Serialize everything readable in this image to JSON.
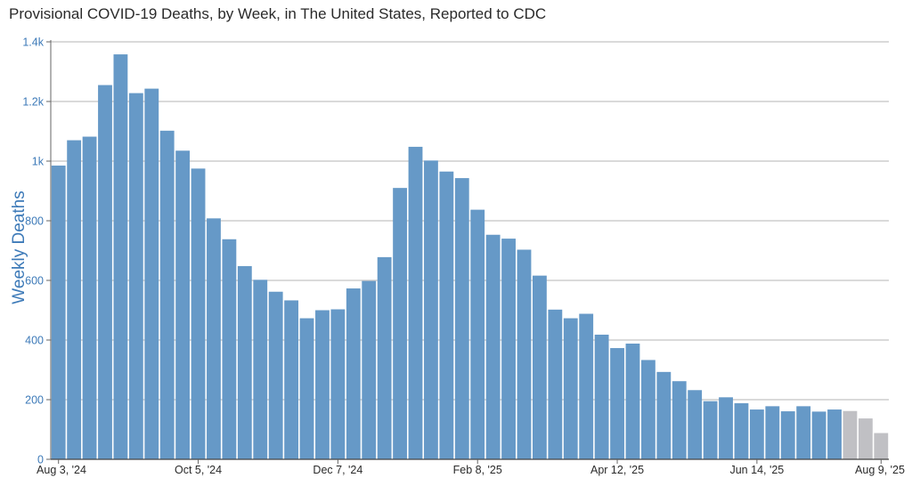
{
  "chart_data": {
    "type": "bar",
    "title": "Provisional COVID-19 Deaths, by Week, in The United States, Reported to CDC",
    "ylabel": "Weekly Deaths",
    "xlabel": "",
    "ylim": [
      0,
      1400
    ],
    "yticks": [
      0,
      200,
      400,
      600,
      800,
      1000,
      1200,
      1400
    ],
    "ytick_labels": [
      "0",
      "200",
      "400",
      "600",
      "800",
      "1k",
      "1.2k",
      "1.4k"
    ],
    "xtick_labels": [
      {
        "index": 0,
        "label": "Aug 3, '24"
      },
      {
        "index": 9,
        "label": "Oct 5, '24"
      },
      {
        "index": 18,
        "label": "Dec 7, '24"
      },
      {
        "index": 27,
        "label": "Feb 8, '25"
      },
      {
        "index": 36,
        "label": "Apr 12, '25"
      },
      {
        "index": 45,
        "label": "Jun 14, '25"
      },
      {
        "index": 53,
        "label": "Aug 9, '25"
      }
    ],
    "grid": true,
    "colors": {
      "reported": "#6699c7",
      "incomplete": "#c0c0c4",
      "axis_text": "#3d7ab8",
      "grid": "#b5b5b5"
    },
    "incomplete_from_index": 51,
    "values": [
      985,
      1070,
      1082,
      1255,
      1358,
      1228,
      1243,
      1102,
      1035,
      975,
      808,
      738,
      648,
      602,
      562,
      533,
      473,
      500,
      503,
      573,
      598,
      678,
      910,
      1048,
      1002,
      965,
      943,
      837,
      753,
      740,
      703,
      616,
      502,
      473,
      488,
      418,
      373,
      388,
      333,
      293,
      262,
      232,
      195,
      208,
      188,
      167,
      178,
      161,
      178,
      160,
      167,
      162,
      137,
      88
    ]
  }
}
